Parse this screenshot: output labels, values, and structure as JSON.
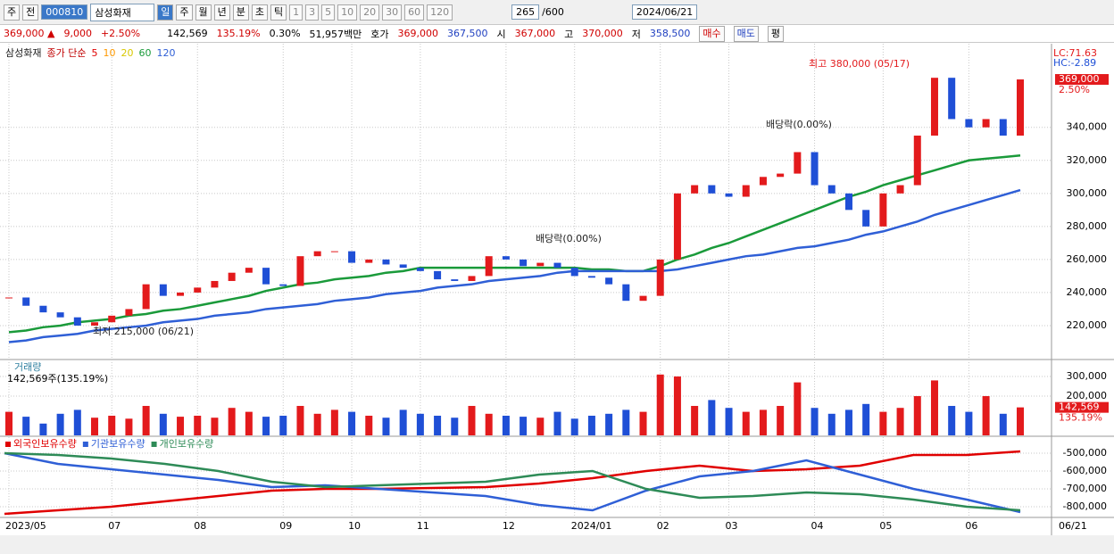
{
  "toolbar": {
    "market": "주",
    "prev": "전",
    "code": "000810",
    "name": "삼성화재",
    "periods": [
      "일",
      "주",
      "월",
      "년",
      "분",
      "초",
      "틱"
    ],
    "intervals": [
      "1",
      "3",
      "5",
      "10",
      "20",
      "30",
      "60",
      "120"
    ],
    "count": "265",
    "max": "/600",
    "date": "2024/06/21"
  },
  "quote": {
    "price": "369,000 ▲",
    "change": "9,000",
    "rate": "+2.50%",
    "volume": "142,569",
    "volume_rate": "135.19%",
    "turnover": "0.30%",
    "amount": "51,957백만",
    "ask_label": "호가",
    "ask": "369,000",
    "bid": "367,500",
    "open_label": "시",
    "open": "367,000",
    "high_label": "고",
    "high": "370,000",
    "low_label": "저",
    "low": "358,500",
    "buy": "매수",
    "sell": "매도",
    "avg": "평"
  },
  "chart_data": [
    {
      "type": "candlestick",
      "ma_label": "종가 단순",
      "ma_legend": [
        {
          "name": "5",
          "color": "#e00000"
        },
        {
          "name": "10",
          "color": "#ff9900"
        },
        {
          "name": "20",
          "color": "#d8c800"
        }
      ],
      "up_color": "#e31a1c",
      "down_color": "#1f4fd6",
      "lc_label": "LC:71.63",
      "hc_label": "HC:-2.89",
      "last_label": "369,000",
      "last_rate": "2.50%",
      "annotations": [
        "최고 380,000 (05/17)",
        "최저 215,000 (06/21)",
        "배당락(0.00%)",
        "배당락(0.00%)"
      ],
      "categories": [
        "2023/05",
        null,
        null,
        null,
        null,
        null,
        "07",
        null,
        null,
        null,
        null,
        "08",
        null,
        null,
        null,
        null,
        "09",
        null,
        null,
        null,
        "10",
        null,
        null,
        null,
        "11",
        null,
        null,
        null,
        null,
        "12",
        null,
        null,
        null,
        "2024/01",
        null,
        null,
        null,
        null,
        "02",
        null,
        null,
        null,
        "03",
        null,
        null,
        null,
        null,
        "04",
        null,
        null,
        null,
        "05",
        null,
        null,
        null,
        null,
        "06",
        null,
        null,
        "06/21"
      ],
      "series": [
        {
          "name": "삼성화재",
          "values": [
            237000,
            232000,
            228000,
            225000,
            220000,
            222000,
            226000,
            230000,
            245000,
            238000,
            240000,
            243000,
            247000,
            252000,
            255000,
            245000,
            244000,
            262000,
            265000,
            265000,
            258000,
            260000,
            257000,
            255000,
            253000,
            248000,
            247000,
            250000,
            262000,
            260000,
            256000,
            258000,
            255000,
            250000,
            249000,
            245000,
            235000,
            238000,
            260000,
            300000,
            305000,
            300000,
            298000,
            305000,
            310000,
            312000,
            325000,
            305000,
            300000,
            290000,
            280000,
            300000,
            305000,
            335000,
            370000,
            345000,
            340000,
            345000,
            335000,
            369000
          ]
        },
        {
          "name": "60",
          "color": "#1a9a3a",
          "values": [
            216000,
            217000,
            219000,
            220000,
            222000,
            223000,
            224000,
            226000,
            227000,
            229000,
            230000,
            232000,
            234000,
            236000,
            238000,
            241000,
            243000,
            245000,
            246000,
            248000,
            249000,
            250000,
            252000,
            253000,
            255000,
            255000,
            255000,
            255000,
            255000,
            255000,
            255000,
            255000,
            255000,
            255000,
            254000,
            254000,
            253000,
            253000,
            256000,
            260000,
            263000,
            267000,
            270000,
            274000,
            278000,
            282000,
            286000,
            290000,
            294000,
            298000,
            301000,
            305000,
            308000,
            311000,
            314000,
            317000,
            320000,
            321000,
            322000,
            323000
          ]
        },
        {
          "name": "120",
          "color": "#2f5fd6",
          "values": [
            210000,
            211000,
            213000,
            214000,
            215000,
            217000,
            218000,
            219000,
            220000,
            222000,
            223000,
            224000,
            226000,
            227000,
            228000,
            230000,
            231000,
            232000,
            233000,
            235000,
            236000,
            237000,
            239000,
            240000,
            241000,
            243000,
            244000,
            245000,
            247000,
            248000,
            249000,
            250000,
            252000,
            253000,
            253000,
            253000,
            253000,
            253000,
            253000,
            254000,
            256000,
            258000,
            260000,
            262000,
            263000,
            265000,
            267000,
            268000,
            270000,
            272000,
            275000,
            277000,
            280000,
            283000,
            287000,
            290000,
            293000,
            296000,
            299000,
            302000
          ]
        }
      ],
      "ylim": [
        200000,
        389000
      ],
      "yticks": [
        {
          "value": 220000,
          "label": "220,000"
        },
        {
          "value": 240000,
          "label": "240,000"
        },
        {
          "value": 260000,
          "label": "260,000"
        },
        {
          "value": 280000,
          "label": "280,000"
        },
        {
          "value": 300000,
          "label": "300,000"
        },
        {
          "value": 320000,
          "label": "320,000"
        },
        {
          "value": 340000,
          "label": "340,000"
        }
      ],
      "grid": true
    },
    {
      "type": "bar",
      "title": "거래량",
      "subtitle": "142,569주(135.19%)",
      "last_label": "142,569",
      "last_rate": "135.19%",
      "values": [
        120000,
        95000,
        60000,
        110000,
        130000,
        90000,
        100000,
        85000,
        150000,
        110000,
        95000,
        100000,
        90000,
        140000,
        120000,
        95000,
        100000,
        150000,
        110000,
        130000,
        120000,
        100000,
        90000,
        130000,
        110000,
        100000,
        90000,
        150000,
        110000,
        100000,
        95000,
        90000,
        120000,
        85000,
        100000,
        110000,
        130000,
        120000,
        310000,
        300000,
        150000,
        180000,
        140000,
        120000,
        130000,
        150000,
        270000,
        140000,
        110000,
        130000,
        160000,
        120000,
        140000,
        200000,
        280000,
        150000,
        120000,
        200000,
        110000,
        142569
      ],
      "ylim": [
        0,
        382000
      ],
      "yticks": [
        {
          "value": 200000,
          "label": "200,000"
        },
        {
          "value": 300000,
          "label": "300,000"
        }
      ]
    },
    {
      "type": "line",
      "series": [
        {
          "name": "외국인보유수량",
          "color": "#e00000",
          "values": [
            -840000,
            -820000,
            -800000,
            -770000,
            -740000,
            -710000,
            -700000,
            -700000,
            -695000,
            -690000,
            -670000,
            -640000,
            -600000,
            -570000,
            -600000,
            -590000,
            -570000,
            -510000,
            -510000,
            -490000
          ]
        },
        {
          "name": "기관보유수량",
          "color": "#2f5fd6",
          "values": [
            -500000,
            -560000,
            -590000,
            -620000,
            -650000,
            -690000,
            -680000,
            -700000,
            -720000,
            -740000,
            -790000,
            -820000,
            -710000,
            -630000,
            -600000,
            -540000,
            -620000,
            -700000,
            -760000,
            -830000
          ]
        },
        {
          "name": "개인보유수량",
          "color": "#2e8b57",
          "values": [
            -500000,
            -510000,
            -530000,
            -560000,
            -600000,
            -660000,
            -690000,
            -680000,
            -670000,
            -660000,
            -620000,
            -600000,
            -700000,
            -750000,
            -740000,
            -720000,
            -730000,
            -760000,
            -800000,
            -820000
          ]
        }
      ],
      "ylim": [
        -860000,
        -410000
      ],
      "yticks": [
        {
          "value": -500000,
          "label": "-500,000"
        },
        {
          "value": -600000,
          "label": "-600,000"
        },
        {
          "value": -700000,
          "label": "-700,000"
        },
        {
          "value": -800000,
          "label": "-800,000"
        }
      ]
    }
  ]
}
